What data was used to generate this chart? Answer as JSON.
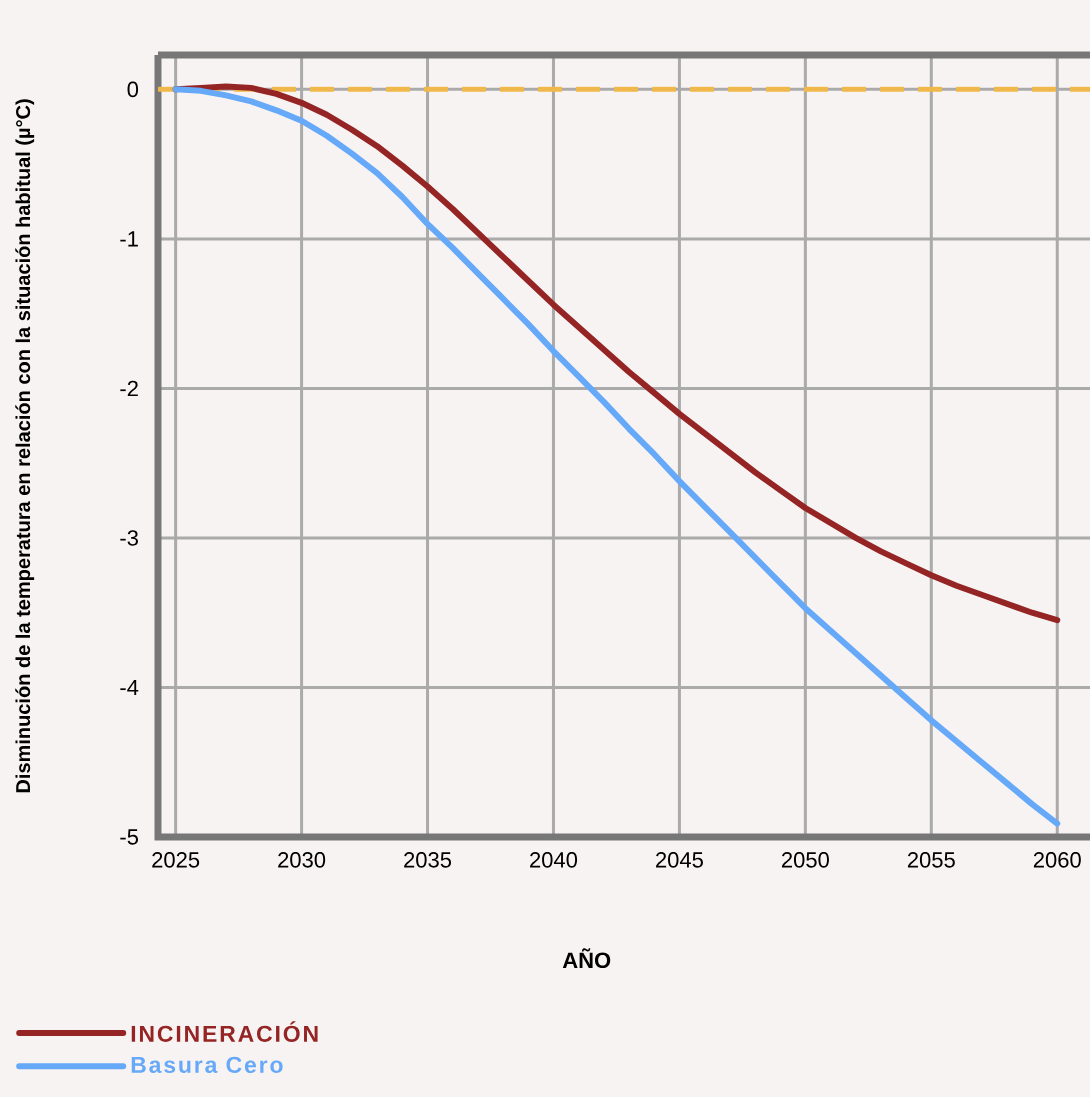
{
  "chart_data": {
    "type": "line",
    "xlabel": "AÑO",
    "ylabel": "Disminución de la temperatura en relación con la situación habitual (µ°C)",
    "x": [
      2025,
      2026,
      2027,
      2028,
      2029,
      2030,
      2031,
      2032,
      2033,
      2034,
      2035,
      2036,
      2037,
      2038,
      2039,
      2040,
      2041,
      2042,
      2043,
      2044,
      2045,
      2046,
      2047,
      2048,
      2049,
      2050,
      2051,
      2052,
      2053,
      2054,
      2055,
      2056,
      2057,
      2058,
      2059,
      2060
    ],
    "series": [
      {
        "name": "INCINERACIÓN",
        "color": "#952525",
        "values": [
          0,
          0.01,
          0.02,
          0.01,
          -0.03,
          -0.09,
          -0.17,
          -0.27,
          -0.38,
          -0.51,
          -0.65,
          -0.8,
          -0.96,
          -1.12,
          -1.28,
          -1.44,
          -1.59,
          -1.74,
          -1.89,
          -2.03,
          -2.17,
          -2.3,
          -2.43,
          -2.56,
          -2.68,
          -2.8,
          -2.9,
          -3.0,
          -3.09,
          -3.17,
          -3.25,
          -3.32,
          -3.38,
          -3.44,
          -3.5,
          -3.55
        ]
      },
      {
        "name": "Basura Cero",
        "color": "#66a9f8",
        "values": [
          0,
          -0.01,
          -0.04,
          -0.08,
          -0.14,
          -0.21,
          -0.31,
          -0.43,
          -0.56,
          -0.72,
          -0.9,
          -1.06,
          -1.23,
          -1.4,
          -1.57,
          -1.75,
          -1.92,
          -2.09,
          -2.27,
          -2.44,
          -2.62,
          -2.79,
          -2.96,
          -3.13,
          -3.3,
          -3.47,
          -3.62,
          -3.77,
          -3.92,
          -4.07,
          -4.22,
          -4.36,
          -4.5,
          -4.64,
          -4.78,
          -4.91
        ]
      }
    ],
    "xlim": [
      2024.3,
      2061.3
    ],
    "ylim": [
      -5,
      0.23
    ],
    "xticks": [
      2025,
      2030,
      2035,
      2040,
      2045,
      2050,
      2055,
      2060
    ],
    "yticks": [
      0,
      -1,
      -2,
      -3,
      -4,
      -5
    ],
    "ref_lines": [
      {
        "axis": "y",
        "value": 0,
        "color": "#f0b84a",
        "line_style": "dashed"
      }
    ],
    "grid": true,
    "legend": "bottom left"
  }
}
